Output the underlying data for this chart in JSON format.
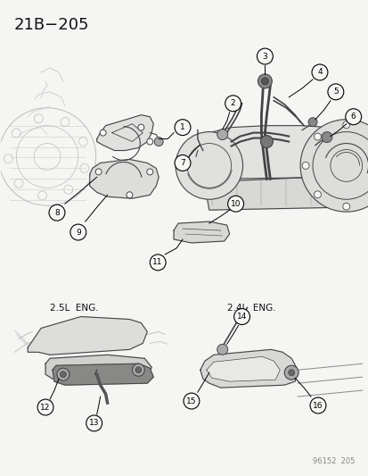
{
  "title": "21B−205",
  "footer": "96152  205",
  "bg_color": "#f5f5f3",
  "text_color": "#111111",
  "fig_width": 4.14,
  "fig_height": 5.33,
  "dpi": 100,
  "label_25L": "2.5L  ENG.",
  "label_24L": "2.4L  ENG.",
  "line_color": "#444444",
  "light_gray": "#bbbbbb"
}
